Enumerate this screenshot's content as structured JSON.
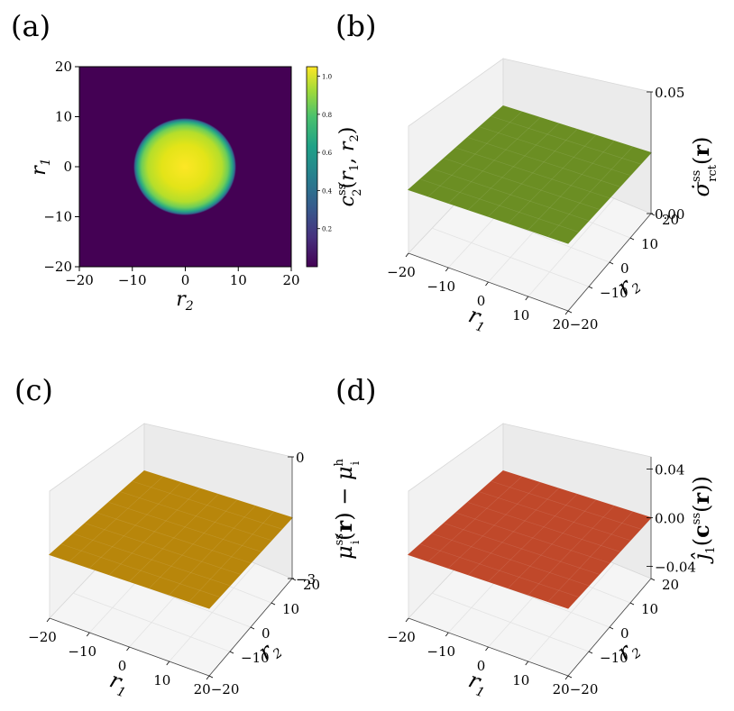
{
  "panels": {
    "a": {
      "label": "(a)"
    },
    "b": {
      "label": "(b)"
    },
    "c": {
      "label": "(c)"
    },
    "d": {
      "label": "(d)"
    }
  },
  "chart_data": [
    {
      "panel": "(a)",
      "type": "heatmap",
      "title": "",
      "xlabel": "r2",
      "ylabel": "r1",
      "xlim": [
        -20,
        20
      ],
      "ylim": [
        -20,
        20
      ],
      "x_ticks": [
        "−20",
        "−10",
        "0",
        "10",
        "20"
      ],
      "y_ticks": [
        "−20",
        "−10",
        "0",
        "10",
        "20"
      ],
      "colorbar": {
        "label": "c2ss(r1, r2)",
        "colormap": "viridis",
        "range": [
          0.0,
          1.05
        ],
        "ticks": [
          "0.2",
          "0.4",
          "0.6",
          "0.8",
          "1.0"
        ]
      },
      "field": {
        "shape": "disk",
        "center": [
          0,
          0
        ],
        "radius": 9,
        "inside_value": 1.0,
        "outside_value": 0.0
      }
    },
    {
      "panel": "(b)",
      "type": "surface3d",
      "xlabel": "r1",
      "ylabel": "r2",
      "zlabel": "σ̇ss_rct(r)",
      "x_ticks": [
        "−20",
        "−10",
        "0",
        "10",
        "20"
      ],
      "y_ticks": [
        "−20",
        "−10",
        "0",
        "10",
        "20"
      ],
      "z_ticks": [
        "0.00",
        "0.05"
      ],
      "zlim": [
        0.0,
        0.05
      ],
      "surface_value": 0.025,
      "color": "#6b8e23"
    },
    {
      "panel": "(c)",
      "type": "surface3d",
      "xlabel": "r1",
      "ylabel": "r2",
      "zlabel": "μiss(r) − μih",
      "x_ticks": [
        "−20",
        "−10",
        "0",
        "10",
        "20"
      ],
      "y_ticks": [
        "−20",
        "−10",
        "0",
        "10",
        "20"
      ],
      "z_ticks": [
        "−3",
        "0"
      ],
      "zlim": [
        -3,
        0
      ],
      "surface_value": -1.5,
      "color": "#b8860b"
    },
    {
      "panel": "(d)",
      "type": "surface3d",
      "xlabel": "r1",
      "ylabel": "r2",
      "zlabel": "ĵ1(css(r))",
      "x_ticks": [
        "−20",
        "−10",
        "0",
        "10",
        "20"
      ],
      "y_ticks": [
        "−20",
        "−10",
        "0",
        "10",
        "20"
      ],
      "z_ticks": [
        "−0.04",
        "0.00",
        "0.04"
      ],
      "zlim": [
        -0.05,
        0.05
      ],
      "surface_value": 0.0,
      "color": "#c0482a"
    }
  ]
}
